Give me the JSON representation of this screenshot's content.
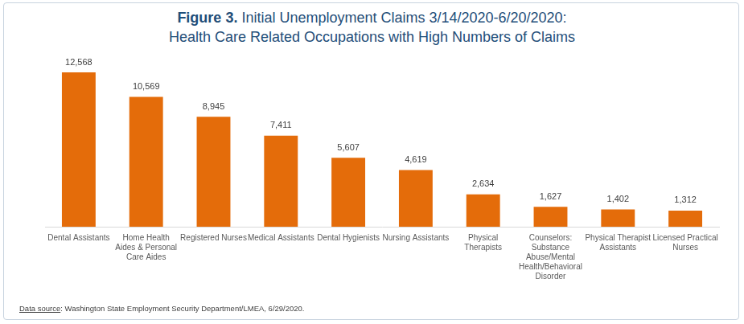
{
  "chart_data": {
    "type": "bar",
    "title": [
      "Figure 3. Initial Unemployment Claims 3/14/2020-6/20/2020:",
      "Health Care Related Occupations with High Numbers of Claims"
    ],
    "source": "Data source: Washington State Employment Security Department/LMEA, 6/29/2020.",
    "categories": [
      "Dental Assistants",
      "Home Health Aides & Personal Care Aides",
      "Registered Nurses",
      "Medical Assistants",
      "Dental Hygienists",
      "Nursing Assistants",
      "Physical Therapists",
      "Counselors: Substance Abuse/Mental Health/Behavioral Disorder",
      "Physical Therapist Assistants",
      "Licensed Practical Nurses"
    ],
    "values": [
      12568,
      10569,
      8945,
      7411,
      5607,
      4619,
      2634,
      1627,
      1402,
      1312
    ],
    "value_labels": [
      "12,568",
      "10,569",
      "8,945",
      "7,411",
      "5,607",
      "4,619",
      "2,634",
      "1,627",
      "1,402",
      "1,312"
    ],
    "color": "#e46c0a",
    "ylim": [
      0,
      12568
    ],
    "grid": false,
    "data_labels": true,
    "tick_labels": "x"
  }
}
